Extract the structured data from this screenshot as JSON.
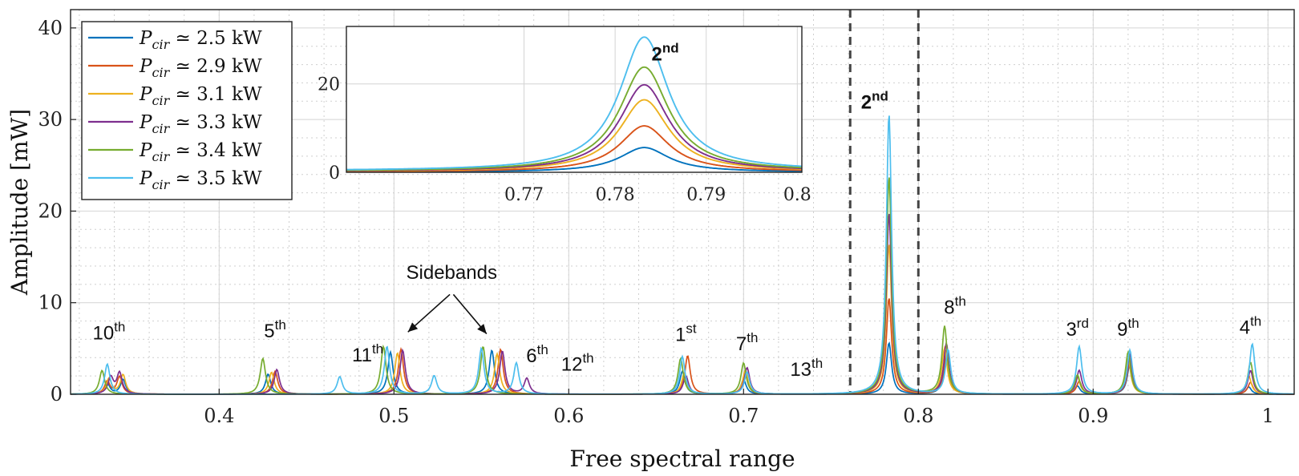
{
  "chart_data": {
    "type": "line",
    "xlabel": "Free spectral range",
    "ylabel": "Amplitude [mW]",
    "xlim": [
      0.315,
      1.015
    ],
    "ylim": [
      0,
      42
    ],
    "x_ticks": [
      "0.4",
      "0.5",
      "0.6",
      "0.7",
      "0.8",
      "0.9",
      "1"
    ],
    "x_tick_values": [
      0.4,
      0.5,
      0.6,
      0.7,
      0.8,
      0.9,
      1.0
    ],
    "y_ticks": [
      "0",
      "10",
      "20",
      "30",
      "40"
    ],
    "y_tick_values": [
      0,
      10,
      20,
      30,
      40
    ],
    "grid": true,
    "legend_position": "top-left",
    "series": [
      {
        "name": "P_cir ≃ 2.5 kW",
        "label_main": "P",
        "label_sub": "cir",
        "label_rest": " ≃ 2.5 kW",
        "color": "#0072BD",
        "peaks": [
          [
            0.336,
            1.2
          ],
          [
            0.345,
            1.6
          ],
          [
            0.428,
            2.2
          ],
          [
            0.498,
            4.6
          ],
          [
            0.556,
            4.8
          ],
          [
            0.665,
            2.5
          ],
          [
            0.7,
            1.6
          ],
          [
            0.7832,
            5.6
          ],
          [
            0.816,
            4.2
          ],
          [
            0.891,
            0.9
          ],
          [
            0.921,
            3.3
          ],
          [
            0.989,
            0.8
          ]
        ]
      },
      {
        "name": "P_cir ≃ 2.9 kW",
        "label_main": "P",
        "label_sub": "cir",
        "label_rest": " ≃ 2.9 kW",
        "color": "#D95319",
        "peaks": [
          [
            0.336,
            1.4
          ],
          [
            0.343,
            1.9
          ],
          [
            0.432,
            2.5
          ],
          [
            0.504,
            4.9
          ],
          [
            0.561,
            4.9
          ],
          [
            0.668,
            4.2
          ],
          [
            0.701,
            2.1
          ],
          [
            0.7832,
            10.5
          ],
          [
            0.816,
            4.6
          ],
          [
            0.892,
            1.4
          ],
          [
            0.921,
            3.7
          ],
          [
            0.99,
            1.3
          ]
        ]
      },
      {
        "name": "P_cir ≃ 3.1 kW",
        "label_main": "P",
        "label_sub": "cir",
        "label_rest": " ≃ 3.1 kW",
        "color": "#EDB120",
        "peaks": [
          [
            0.337,
            1.7
          ],
          [
            0.345,
            2.1
          ],
          [
            0.43,
            2.4
          ],
          [
            0.502,
            4.5
          ],
          [
            0.559,
            4.4
          ],
          [
            0.666,
            2.2
          ],
          [
            0.701,
            2.6
          ],
          [
            0.7832,
            16.4
          ],
          [
            0.815,
            5.0
          ],
          [
            0.891,
            1.9
          ],
          [
            0.92,
            3.9
          ],
          [
            0.989,
            2.0
          ]
        ]
      },
      {
        "name": "P_cir ≃ 3.3 kW",
        "label_main": "P",
        "label_sub": "cir",
        "label_rest": " ≃ 3.3 kW",
        "color": "#7E2F8E",
        "peaks": [
          [
            0.338,
            1.8
          ],
          [
            0.343,
            2.3
          ],
          [
            0.433,
            2.7
          ],
          [
            0.505,
            4.8
          ],
          [
            0.562,
            4.7
          ],
          [
            0.576,
            1.7
          ],
          [
            0.667,
            2.0
          ],
          [
            0.702,
            2.9
          ],
          [
            0.7832,
            19.8
          ],
          [
            0.816,
            5.5
          ],
          [
            0.892,
            2.6
          ],
          [
            0.921,
            4.3
          ],
          [
            0.99,
            2.6
          ]
        ]
      },
      {
        "name": "P_cir ≃ 3.4 kW",
        "label_main": "P",
        "label_sub": "cir",
        "label_rest": " ≃ 3.4 kW",
        "color": "#77AC30",
        "peaks": [
          [
            0.333,
            2.6
          ],
          [
            0.425,
            3.9
          ],
          [
            0.494,
            5.2
          ],
          [
            0.551,
            5.2
          ],
          [
            0.664,
            3.9
          ],
          [
            0.7,
            3.4
          ],
          [
            0.7832,
            23.8
          ],
          [
            0.815,
            7.4
          ],
          [
            0.891,
            2.1
          ],
          [
            0.92,
            4.6
          ],
          [
            0.99,
            3.5
          ]
        ]
      },
      {
        "name": "P_cir ≃ 3.5 kW",
        "label_main": "P",
        "label_sub": "cir",
        "label_rest": " ≃ 3.5 kW",
        "color": "#4DBEEE",
        "peaks": [
          [
            0.336,
            3.3
          ],
          [
            0.469,
            1.9
          ],
          [
            0.496,
            5.2
          ],
          [
            0.523,
            2.0
          ],
          [
            0.55,
            5.0
          ],
          [
            0.57,
            3.4
          ],
          [
            0.665,
            4.1
          ],
          [
            0.702,
            2.4
          ],
          [
            0.7832,
            30.6
          ],
          [
            0.817,
            4.8
          ],
          [
            0.892,
            5.2
          ],
          [
            0.921,
            4.8
          ],
          [
            0.991,
            5.5
          ]
        ]
      }
    ],
    "annotations": [
      {
        "base": "10",
        "sup": "th",
        "x": 0.337,
        "y": 6.0
      },
      {
        "base": "5",
        "sup": "th",
        "x": 0.432,
        "y": 6.2
      },
      {
        "base": "11",
        "sup": "th",
        "x": 0.485,
        "y": 3.6
      },
      {
        "base": "6",
        "sup": "th",
        "x": 0.582,
        "y": 3.5
      },
      {
        "base": "12",
        "sup": "th",
        "x": 0.605,
        "y": 2.6
      },
      {
        "base": "1",
        "sup": "st",
        "x": 0.667,
        "y": 5.8
      },
      {
        "base": "7",
        "sup": "th",
        "x": 0.702,
        "y": 4.8
      },
      {
        "base": "13",
        "sup": "th",
        "x": 0.736,
        "y": 2.0
      },
      {
        "base": "2",
        "sup": "nd",
        "x": 0.775,
        "y": 31.2,
        "bold": true
      },
      {
        "base": "8",
        "sup": "th",
        "x": 0.821,
        "y": 8.8
      },
      {
        "base": "3",
        "sup": "rd",
        "x": 0.891,
        "y": 6.4
      },
      {
        "base": "9",
        "sup": "th",
        "x": 0.92,
        "y": 6.4
      },
      {
        "base": "4",
        "sup": "th",
        "x": 0.99,
        "y": 6.6
      }
    ],
    "sidebands_label": "Sidebands",
    "sidebands_label_pos": [
      0.533,
      12.6
    ],
    "sidebands_arrows": [
      [
        [
          0.532,
          10.9
        ],
        [
          0.508,
          6.8
        ]
      ],
      [
        [
          0.534,
          10.9
        ],
        [
          0.553,
          6.6
        ]
      ]
    ],
    "dashed_markers": [
      0.761,
      0.8
    ],
    "inset": {
      "xlim": [
        0.7505,
        0.8005
      ],
      "ylim": [
        0,
        33
      ],
      "x_ticks": [
        "0.77",
        "0.78",
        "0.79",
        "0.8"
      ],
      "x_tick_values": [
        0.77,
        0.78,
        0.79,
        0.8
      ],
      "y_ticks": [
        "0",
        "20"
      ],
      "y_tick_values": [
        0,
        20
      ],
      "label_base": "2",
      "label_sup": "nd",
      "label_pos": [
        0.7855,
        25.3
      ]
    }
  }
}
